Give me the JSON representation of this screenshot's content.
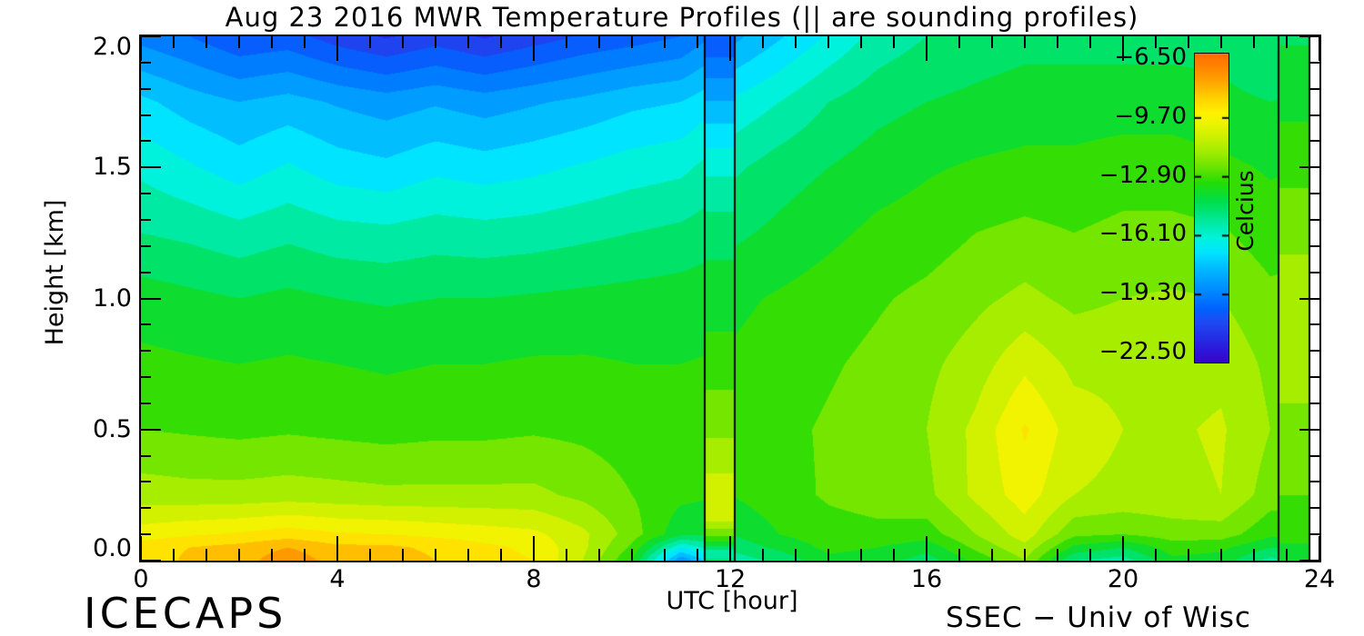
{
  "title": "Aug 23 2016 MWR Temperature Profiles (|| are sounding profiles)",
  "annotations": {
    "bottom_left": "ICECAPS",
    "bottom_right": "SSEC − Univ of Wisc"
  },
  "chart_data": {
    "type": "heatmap",
    "title": "Aug 23 2016 MWR Temperature Profiles (|| are sounding profiles)",
    "xlabel": "UTC [hour]",
    "ylabel": "Height [km]",
    "xlim": [
      0,
      24
    ],
    "ylim": [
      0.0,
      2.0
    ],
    "x_major_ticks": [
      0,
      4,
      8,
      12,
      16,
      20,
      24
    ],
    "x_tick_labels": [
      "0",
      "4",
      "8",
      "12",
      "16",
      "20",
      "24"
    ],
    "x_minor_per_major": 6,
    "y_major_ticks": [
      0.0,
      0.5,
      1.0,
      1.5,
      2.0
    ],
    "y_tick_labels": [
      "0.0",
      "0.5",
      "1.0",
      "1.5",
      "2.0"
    ],
    "y_minor_step": 0.1,
    "grid": false,
    "data_end_hour": 23.8,
    "contour_step_c": 0.8,
    "hours": [
      0,
      1,
      2,
      3,
      4,
      5,
      6,
      7,
      8,
      9,
      10,
      11,
      12,
      13,
      14,
      15,
      16,
      17,
      18,
      19,
      20,
      21,
      22,
      23,
      24
    ],
    "heights_km": [
      0.0,
      0.05,
      0.1,
      0.25,
      0.5,
      0.75,
      1.0,
      1.25,
      1.5,
      1.75,
      2.0
    ],
    "temperature_c_rows_by_height": [
      [
        -9.2,
        -8.4,
        -8.2,
        -7.2,
        -8.2,
        -8.0,
        -8.6,
        -9.0,
        -9.4,
        -11.0,
        -13.4,
        -19.0,
        -15.5,
        -14.8,
        -13.6,
        -13.8,
        -14.6,
        -13.2,
        -11.8,
        -15.0,
        -15.4,
        -13.6,
        -13.8,
        -15.3,
        -14.3
      ],
      [
        -9.0,
        -8.6,
        -8.3,
        -7.8,
        -8.4,
        -8.4,
        -8.8,
        -9.2,
        -9.6,
        -10.8,
        -12.8,
        -16.5,
        -14.8,
        -14.0,
        -13.2,
        -13.4,
        -13.9,
        -12.4,
        -11.2,
        -13.6,
        -14.2,
        -13.0,
        -13.2,
        -14.2,
        -13.8
      ],
      [
        -9.8,
        -9.5,
        -9.3,
        -9.0,
        -9.3,
        -9.4,
        -9.6,
        -9.8,
        -10.0,
        -10.8,
        -12.2,
        -14.0,
        -14.2,
        -13.4,
        -12.9,
        -12.8,
        -13.0,
        -11.8,
        -10.6,
        -12.4,
        -12.6,
        -12.2,
        -12.2,
        -13.2,
        -13.2
      ],
      [
        -11.4,
        -11.5,
        -11.5,
        -11.4,
        -11.5,
        -11.6,
        -11.6,
        -11.6,
        -11.6,
        -12.0,
        -12.6,
        -13.2,
        -13.4,
        -12.9,
        -12.5,
        -12.3,
        -12.0,
        -10.8,
        -9.8,
        -11.0,
        -11.2,
        -11.2,
        -11.0,
        -12.2,
        -12.4
      ],
      [
        -12.6,
        -12.7,
        -12.8,
        -12.7,
        -12.8,
        -12.9,
        -12.8,
        -12.8,
        -12.7,
        -12.8,
        -13.0,
        -13.2,
        -13.2,
        -12.8,
        -12.5,
        -12.2,
        -11.8,
        -10.8,
        -9.3,
        -10.6,
        -11.0,
        -11.1,
        -10.9,
        -11.8,
        -12.1
      ],
      [
        -13.2,
        -13.3,
        -13.4,
        -13.3,
        -13.4,
        -13.5,
        -13.4,
        -13.4,
        -13.3,
        -13.3,
        -13.4,
        -13.4,
        -13.3,
        -13.0,
        -12.7,
        -12.4,
        -12.0,
        -11.4,
        -10.4,
        -11.2,
        -11.2,
        -11.3,
        -11.2,
        -12.0,
        -12.2
      ],
      [
        -13.8,
        -14.0,
        -14.2,
        -14.0,
        -14.2,
        -14.3,
        -14.2,
        -14.2,
        -14.1,
        -14.0,
        -13.9,
        -13.8,
        -13.6,
        -13.3,
        -13.0,
        -12.7,
        -12.4,
        -12.0,
        -11.6,
        -12.0,
        -11.8,
        -11.7,
        -11.8,
        -12.4,
        -12.3
      ],
      [
        -15.0,
        -15.2,
        -15.5,
        -15.2,
        -15.5,
        -15.6,
        -15.4,
        -15.5,
        -15.4,
        -15.2,
        -15.0,
        -14.8,
        -14.4,
        -14.0,
        -13.6,
        -13.2,
        -13.0,
        -12.6,
        -12.4,
        -12.6,
        -12.4,
        -12.4,
        -12.5,
        -13.0,
        -12.8
      ],
      [
        -16.0,
        -16.5,
        -17.0,
        -16.5,
        -17.0,
        -17.2,
        -16.8,
        -17.0,
        -16.8,
        -16.5,
        -16.2,
        -16.0,
        -15.2,
        -14.6,
        -14.2,
        -13.8,
        -13.5,
        -13.3,
        -13.2,
        -13.2,
        -13.0,
        -13.0,
        -13.2,
        -13.5,
        -13.3
      ],
      [
        -17.2,
        -17.8,
        -18.2,
        -17.9,
        -18.3,
        -18.6,
        -18.3,
        -18.6,
        -18.3,
        -18.0,
        -17.6,
        -17.4,
        -16.5,
        -15.8,
        -15.0,
        -14.5,
        -14.2,
        -14.0,
        -13.8,
        -13.8,
        -13.8,
        -13.8,
        -14.0,
        -14.2,
        -14.0
      ],
      [
        -19.3,
        -19.8,
        -20.5,
        -20.3,
        -21.0,
        -21.5,
        -21.0,
        -21.5,
        -21.0,
        -20.5,
        -20.2,
        -19.8,
        -18.5,
        -17.5,
        -16.5,
        -15.5,
        -15.0,
        -14.7,
        -14.5,
        -14.5,
        -14.5,
        -14.5,
        -14.5,
        -15.0,
        -14.5
      ]
    ],
    "sounding_profiles": [
      {
        "start_hour": 11.48,
        "end_hour": 12.09,
        "heights_km": [
          0.0,
          0.03,
          0.08,
          0.15,
          0.3,
          0.5,
          0.8,
          1.1,
          1.4,
          1.6,
          1.8,
          2.0
        ],
        "temps_c": [
          -14.8,
          -15.6,
          -13.0,
          -11.0,
          -10.8,
          -12.0,
          -13.2,
          -14.0,
          -15.3,
          -16.8,
          -18.6,
          -20.6
        ]
      },
      {
        "start_hour": 23.17,
        "end_hour": 23.8,
        "heights_km": [
          0.0,
          0.1,
          0.3,
          0.5,
          0.8,
          1.0,
          1.3,
          1.6,
          2.0
        ],
        "temps_c": [
          -13.8,
          -13.2,
          -12.4,
          -11.9,
          -11.6,
          -11.3,
          -12.2,
          -13.2,
          -14.3
        ]
      }
    ],
    "colorbar": {
      "unit_label": "Celcius",
      "tick_labels": [
        "−6.50",
        "−9.70",
        "−12.90",
        "−16.10",
        "−19.30",
        "−22.50"
      ],
      "tick_values": [
        -6.5,
        -9.7,
        -12.9,
        -16.1,
        -19.3,
        -22.5
      ],
      "top_value": -6.2,
      "bottom_value": -23.0
    },
    "colormap": [
      {
        "t": -23.2,
        "c": "#3c00c0"
      },
      {
        "t": -22.4,
        "c": "#2e14d8"
      },
      {
        "t": -21.6,
        "c": "#2330e6"
      },
      {
        "t": -20.8,
        "c": "#1e4af2"
      },
      {
        "t": -20.0,
        "c": "#0064ff"
      },
      {
        "t": -19.0,
        "c": "#008cff"
      },
      {
        "t": -18.0,
        "c": "#00b4ff"
      },
      {
        "t": -17.0,
        "c": "#00e4ff"
      },
      {
        "t": -16.2,
        "c": "#00f2dc"
      },
      {
        "t": -15.2,
        "c": "#00e896"
      },
      {
        "t": -14.2,
        "c": "#00de4a"
      },
      {
        "t": -13.2,
        "c": "#24dc06"
      },
      {
        "t": -12.4,
        "c": "#66e400"
      },
      {
        "t": -11.6,
        "c": "#9cec00"
      },
      {
        "t": -10.8,
        "c": "#c8f000"
      },
      {
        "t": -10.0,
        "c": "#ecf400"
      },
      {
        "t": -9.4,
        "c": "#fff200"
      },
      {
        "t": -8.6,
        "c": "#ffd200"
      },
      {
        "t": -7.8,
        "c": "#ffaa00"
      },
      {
        "t": -7.0,
        "c": "#ff8800"
      },
      {
        "t": -6.2,
        "c": "#ff6c00"
      }
    ]
  }
}
